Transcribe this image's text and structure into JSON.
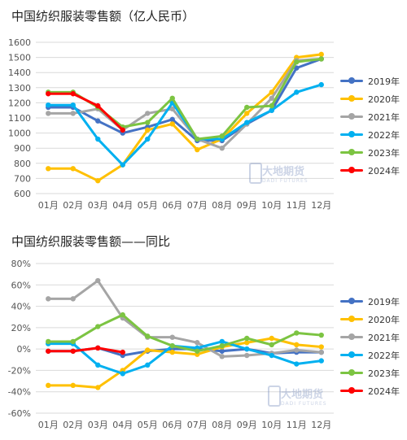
{
  "chart_data": [
    {
      "type": "line",
      "title": "中国纺织服装零售额（亿人民币）",
      "categories": [
        "01月",
        "02月",
        "03月",
        "04月",
        "05月",
        "06月",
        "07月",
        "08月",
        "09月",
        "10月",
        "11月",
        "12月"
      ],
      "ylim": [
        600,
        1600
      ],
      "yticks": [
        600,
        700,
        800,
        900,
        1000,
        1100,
        1200,
        1300,
        1400,
        1500,
        1600
      ],
      "ytick_labels": [
        "600",
        "700",
        "800",
        "900",
        "1000",
        "1100",
        "1200",
        "1300",
        "1400",
        "1500",
        "1600"
      ],
      "grid": true,
      "legend": "right",
      "series": [
        {
          "name": "2019年",
          "color": "#4472c4",
          "values": [
            1170,
            1170,
            1080,
            1000,
            1040,
            1090,
            950,
            950,
            1060,
            1150,
            1430,
            1490
          ]
        },
        {
          "name": "2020年",
          "color": "#ffc000",
          "values": [
            765,
            765,
            685,
            790,
            1020,
            1060,
            890,
            960,
            1130,
            1270,
            1500,
            1520
          ]
        },
        {
          "name": "2021年",
          "color": "#a5a5a5",
          "values": [
            1130,
            1130,
            1160,
            1020,
            1130,
            1160,
            960,
            900,
            1060,
            1230,
            1480,
            1490
          ]
        },
        {
          "name": "2022年",
          "color": "#00b0f0",
          "values": [
            1185,
            1185,
            960,
            790,
            960,
            1200,
            960,
            960,
            1070,
            1150,
            1270,
            1320
          ]
        },
        {
          "name": "2023年",
          "color": "#7cc442",
          "values": [
            1270,
            1270,
            1170,
            1040,
            1070,
            1230,
            960,
            980,
            1170,
            1180,
            1470,
            1490
          ]
        },
        {
          "name": "2024年",
          "color": "#ff0000",
          "values": [
            1260,
            1260,
            1180,
            1020,
            null,
            null,
            null,
            null,
            null,
            null,
            null,
            null
          ]
        }
      ]
    },
    {
      "type": "line",
      "title": "中国纺织服装零售额——同比",
      "categories": [
        "01月",
        "02月",
        "03月",
        "04月",
        "05月",
        "06月",
        "07月",
        "08月",
        "09月",
        "10月",
        "11月",
        "12月"
      ],
      "ylim": [
        -60,
        80
      ],
      "yticks": [
        -60,
        -40,
        -20,
        0,
        20,
        40,
        60,
        80
      ],
      "ytick_labels": [
        "-60%",
        "-40%",
        "-20%",
        "0%",
        "20%",
        "40%",
        "60%",
        "80%"
      ],
      "grid": true,
      "legend": "right",
      "series": [
        {
          "name": "2019年",
          "color": "#4472c4",
          "values": [
            -2,
            -2,
            1,
            -6,
            -2,
            0,
            0,
            -2,
            0,
            -4,
            -3,
            -3
          ]
        },
        {
          "name": "2020年",
          "color": "#ffc000",
          "values": [
            -34,
            -34,
            -36,
            -20,
            -1,
            -3,
            -5,
            2,
            6,
            10,
            4,
            2
          ]
        },
        {
          "name": "2021年",
          "color": "#a5a5a5",
          "values": [
            47,
            47,
            64,
            29,
            11,
            11,
            6,
            -7,
            -6,
            -4,
            -1,
            -3
          ]
        },
        {
          "name": "2022年",
          "color": "#00b0f0",
          "values": [
            5,
            5,
            -15,
            -23,
            -15,
            3,
            1,
            7,
            0,
            -6,
            -14,
            -11
          ]
        },
        {
          "name": "2023年",
          "color": "#7cc442",
          "values": [
            7,
            7,
            21,
            32,
            12,
            3,
            -2,
            3,
            10,
            4,
            15,
            13
          ]
        },
        {
          "name": "2024年",
          "color": "#ff0000",
          "values": [
            -2,
            -2,
            1,
            -3,
            null,
            null,
            null,
            null,
            null,
            null,
            null,
            null
          ]
        }
      ]
    }
  ],
  "watermark": {
    "cn": "大地期货",
    "en": "DADI FUTURES"
  }
}
